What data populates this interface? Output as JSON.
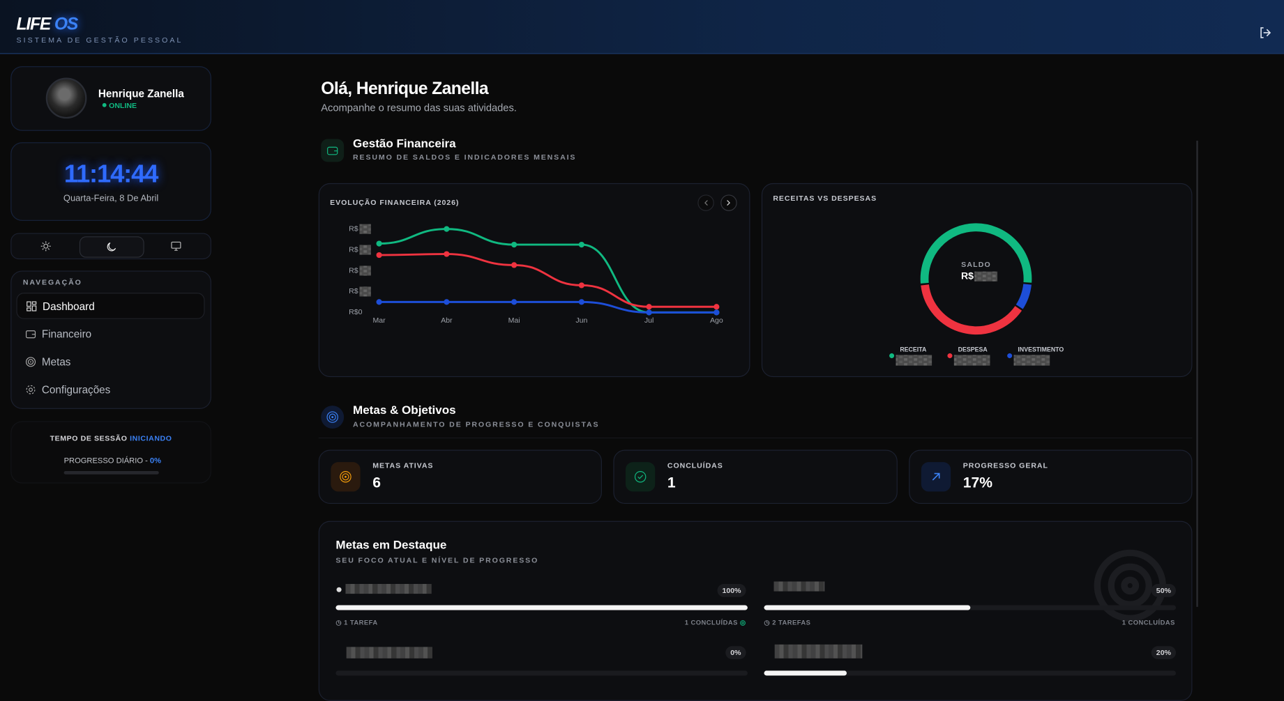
{
  "header": {
    "logo_a": "LIFE",
    "logo_b": "OS",
    "subtitle": "SISTEMA DE GESTÃO PESSOAL"
  },
  "profile": {
    "name": "Henrique Zanella",
    "status": "ONLINE"
  },
  "clock": {
    "time": "11:14:44",
    "date": "Quarta-Feira, 8 De Abril"
  },
  "nav": {
    "title": "NAVEGAÇÃO",
    "items": [
      "Dashboard",
      "Financeiro",
      "Metas",
      "Configurações"
    ]
  },
  "session": {
    "label": "TEMPO DE SESSÃO",
    "state": "INICIANDO",
    "progress_label": "PROGRESSO DIÁRIO -",
    "progress": "0%"
  },
  "greeting": {
    "title": "Olá, Henrique Zanella",
    "subtitle": "Acompanhe o resumo das suas atividades."
  },
  "finance": {
    "title": "Gestão Financeira",
    "subtitle": "RESUMO DE SALDOS E INDICADORES MENSAIS"
  },
  "chart_data": [
    {
      "type": "line",
      "title": "EVOLUÇÃO FINANCEIRA (2026)",
      "categories": [
        "Mar",
        "Abr",
        "Mai",
        "Jun",
        "Jul",
        "Ago"
      ],
      "ylim": [
        0,
        4
      ],
      "yticks": [
        {
          "value": 0,
          "label": "R$0"
        },
        {
          "value": 1,
          "label": "R$"
        },
        {
          "value": 2,
          "label": "R$"
        },
        {
          "value": 3,
          "label": "R$"
        },
        {
          "value": 4,
          "label": "R$"
        }
      ],
      "series": [
        {
          "color": "#10b981",
          "values": [
            3.3,
            4.0,
            3.25,
            3.25,
            0,
            0
          ]
        },
        {
          "color": "#ef3340",
          "values": [
            2.75,
            2.8,
            2.27,
            1.3,
            0.27,
            0.27
          ]
        },
        {
          "color": "#1d4ed8",
          "values": [
            0.5,
            0.5,
            0.5,
            0.5,
            0,
            0
          ]
        }
      ]
    },
    {
      "type": "pie",
      "title": "RECEITAS VS DESPESAS",
      "center_label": "SALDO",
      "center_value": "R$",
      "categories": [
        "RECEITA",
        "DESPESA",
        "INVESTIMENTO"
      ],
      "values": [
        53,
        39,
        8
      ],
      "colors": [
        "#10b981",
        "#ef3340",
        "#1d4ed8"
      ]
    }
  ],
  "goals": {
    "title": "Metas & Objetivos",
    "subtitle": "ACOMPANHAMENTO DE PROGRESSO E CONQUISTAS",
    "stats": [
      {
        "label": "METAS ATIVAS",
        "value": "6"
      },
      {
        "label": "CONCLUÍDAS",
        "value": "1"
      },
      {
        "label": "PROGRESSO GERAL",
        "value": "17%"
      }
    ]
  },
  "featured": {
    "title": "Metas em Destaque",
    "subtitle": "SEU FOCO ATUAL E NÍVEL DE PROGRESSO",
    "items": [
      {
        "progress": {
          "value": 100,
          "label": "100%"
        },
        "tasks": "1 TAREFA",
        "done": "1 CONCLUÍDAS"
      },
      {
        "progress": {
          "value": 50,
          "label": "50%"
        },
        "tasks": "2 TAREFAS",
        "done": "1 CONCLUÍDAS"
      },
      {
        "progress": {
          "value": 0,
          "label": "0%"
        }
      },
      {
        "progress": {
          "value": 20,
          "label": "20%"
        }
      }
    ]
  }
}
